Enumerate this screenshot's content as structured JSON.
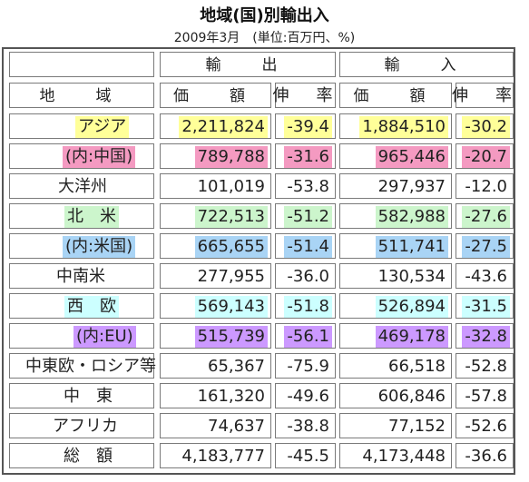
{
  "title": "地域(国)別輸出入",
  "subtitle": "2009年3月　(単位:百万円、%)",
  "headers": {
    "export": "輸　出",
    "import": "輸　入",
    "region": "地　域",
    "value": "価　額",
    "rate": "伸　率",
    "value2": "価　額",
    "rate2": "伸　率"
  },
  "colors": {
    "yellow": "#ffff99",
    "pink": "#f49ac1",
    "green": "#ccf5cc",
    "blue": "#a9d4f5",
    "cyan": "#ccffff",
    "purple": "#cc99ff"
  },
  "rows": [
    {
      "region": "アジア",
      "export_value": "2,211,824",
      "export_rate": "-39.4",
      "import_value": "1,884,510",
      "import_rate": "-30.2",
      "highlight": "yellow"
    },
    {
      "region": "(内:中国)",
      "export_value": "789,788",
      "export_rate": "-31.6",
      "import_value": "965,446",
      "import_rate": "-20.7",
      "highlight": "pink"
    },
    {
      "region": "大洋州",
      "export_value": "101,019",
      "export_rate": "-53.8",
      "import_value": "297,937",
      "import_rate": "-12.0",
      "highlight": "none"
    },
    {
      "region": "北　米",
      "export_value": "722,513",
      "export_rate": "-51.2",
      "import_value": "582,988",
      "import_rate": "-27.6",
      "highlight": "green"
    },
    {
      "region": "(内:米国)",
      "export_value": "665,655",
      "export_rate": "-51.4",
      "import_value": "511,741",
      "import_rate": "-27.5",
      "highlight": "blue"
    },
    {
      "region": "中南米",
      "export_value": "277,955",
      "export_rate": "-36.0",
      "import_value": "130,534",
      "import_rate": "-43.6",
      "highlight": "none"
    },
    {
      "region": "西　欧",
      "export_value": "569,143",
      "export_rate": "-51.8",
      "import_value": "526,894",
      "import_rate": "-31.5",
      "highlight": "cyan"
    },
    {
      "region": "(内:EU)",
      "export_value": "515,739",
      "export_rate": "-56.1",
      "import_value": "469,178",
      "import_rate": "-32.8",
      "highlight": "purple"
    },
    {
      "region": "中東欧・ロシア等",
      "export_value": "65,367",
      "export_rate": "-75.9",
      "import_value": "66,518",
      "import_rate": "-52.8",
      "highlight": "none"
    },
    {
      "region": "中　東",
      "export_value": "161,320",
      "export_rate": "-49.6",
      "import_value": "606,846",
      "import_rate": "-57.8",
      "highlight": "none"
    },
    {
      "region": "アフリカ",
      "export_value": "74,637",
      "export_rate": "-38.8",
      "import_value": "77,152",
      "import_rate": "-52.6",
      "highlight": "none"
    },
    {
      "region": "総　額",
      "export_value": "4,183,777",
      "export_rate": "-45.5",
      "import_value": "4,173,448",
      "import_rate": "-36.6",
      "highlight": "none"
    }
  ]
}
